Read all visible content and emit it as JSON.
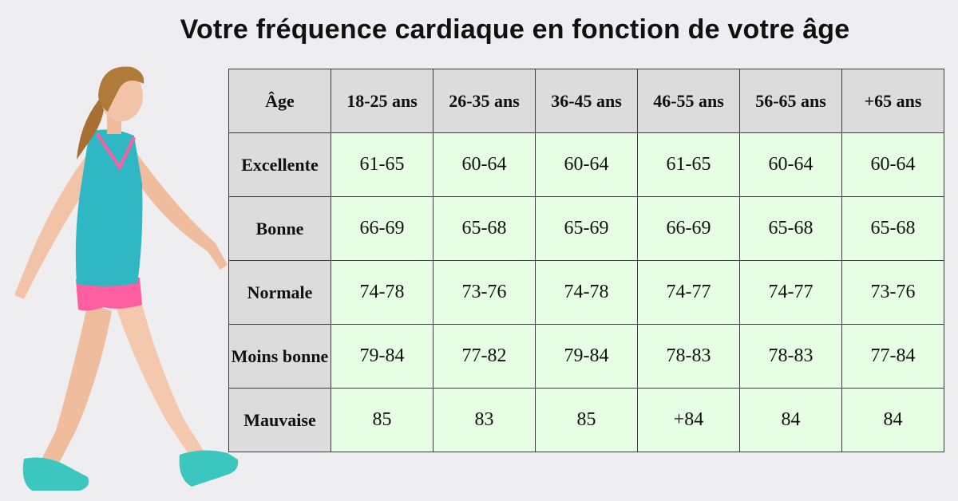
{
  "title": "Votre fréquence cardiaque en fonction de votre âge",
  "table": {
    "corner": "Âge",
    "columns": [
      "18-25 ans",
      "26-35 ans",
      "36-45 ans",
      "46-55 ans",
      "56-65 ans",
      "+65 ans"
    ],
    "rows": [
      {
        "label": "Excellente",
        "values": [
          "61-65",
          "60-64",
          "60-64",
          "61-65",
          "60-64",
          "60-64"
        ]
      },
      {
        "label": "Bonne",
        "values": [
          "66-69",
          "65-68",
          "65-69",
          "66-69",
          "65-68",
          "65-68"
        ]
      },
      {
        "label": "Normale",
        "values": [
          "74-78",
          "73-76",
          "74-78",
          "74-77",
          "74-77",
          "73-76"
        ]
      },
      {
        "label": "Moins bonne",
        "values": [
          "79-84",
          "77-82",
          "79-84",
          "78-83",
          "78-83",
          "77-84"
        ]
      },
      {
        "label": "Mauvaise",
        "values": [
          "85",
          "83",
          "85",
          "+84",
          "84",
          "84"
        ]
      }
    ]
  },
  "colors": {
    "header_bg": "#dcdcdc",
    "cell_bg": "#e6ffe4",
    "shirt": "#2fb8c4",
    "shorts": "#ff5ea0",
    "shoes": "#3cc6c0"
  },
  "illustration": "woman-walking-photo"
}
